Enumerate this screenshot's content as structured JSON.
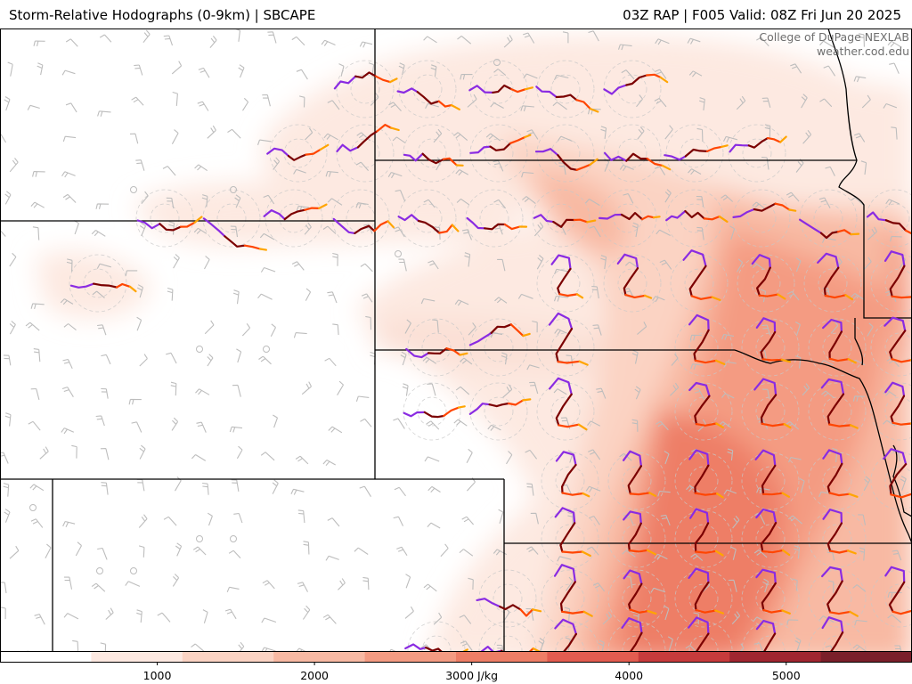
{
  "header": {
    "title_left": "Storm-Relative Hodographs (0-9km) | SBCAPE",
    "title_right": "03Z RAP | F005 Valid: 08Z Fri Jun 20 2025"
  },
  "credit": {
    "line1": "College of DuPage NEXLAB",
    "line2": "weather.cod.edu"
  },
  "colorbar": {
    "units": "J/kg",
    "range": [
      0,
      5800
    ],
    "ticks": [
      {
        "value": 1000,
        "label": "1000"
      },
      {
        "value": 2000,
        "label": "2000"
      },
      {
        "value": 3000,
        "label": "3000 J/kg"
      },
      {
        "value": 4000,
        "label": "4000"
      },
      {
        "value": 5000,
        "label": "5000"
      }
    ],
    "colors": [
      "#ffffff",
      "#fde9e1",
      "#fbd3c3",
      "#f8b9a3",
      "#f49b82",
      "#ee7e66",
      "#e25c50",
      "#c73b3c",
      "#a02630",
      "#7a1f2a"
    ]
  },
  "hodograph_colors": {
    "layer_0_1km": "#8a2be2",
    "layer_1_3km": "#7b0000",
    "layer_3_6km": "#ff4500",
    "layer_6_9km": "#ffa500"
  },
  "boundaries_color": "#000000",
  "barb_color": "#bdbdbd"
}
